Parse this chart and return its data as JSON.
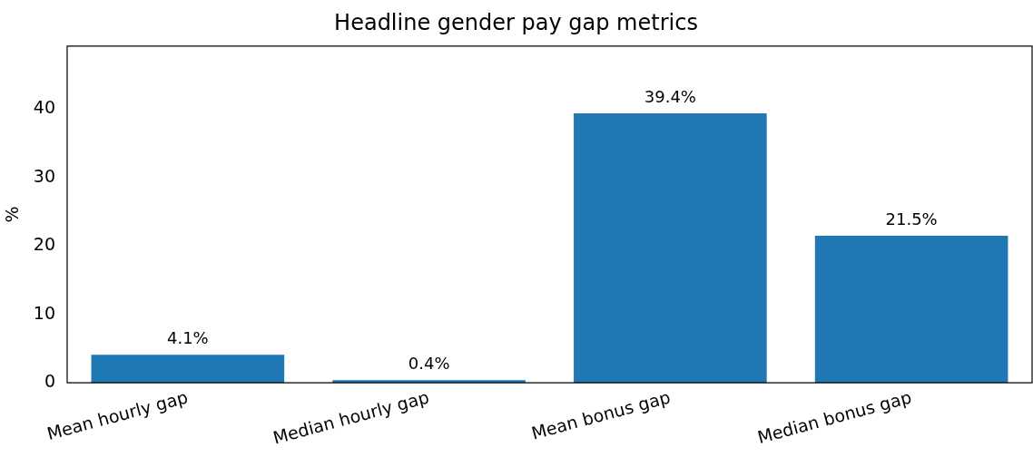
{
  "chart_data": {
    "type": "bar",
    "title": "Headline gender pay gap metrics",
    "ylabel": "%",
    "categories": [
      "Mean hourly gap",
      "Median hourly gap",
      "Mean bonus gap",
      "Median bonus gap"
    ],
    "values": [
      4.1,
      0.4,
      39.4,
      21.5
    ],
    "color": "#1f77b4",
    "value_labels": [
      "4.1%",
      "0.4%",
      "39.4%",
      "21.5%"
    ],
    "ylim": [
      0,
      49.25
    ],
    "yticks": [
      0,
      10,
      20,
      30,
      40
    ],
    "grid": false,
    "legend": false
  }
}
